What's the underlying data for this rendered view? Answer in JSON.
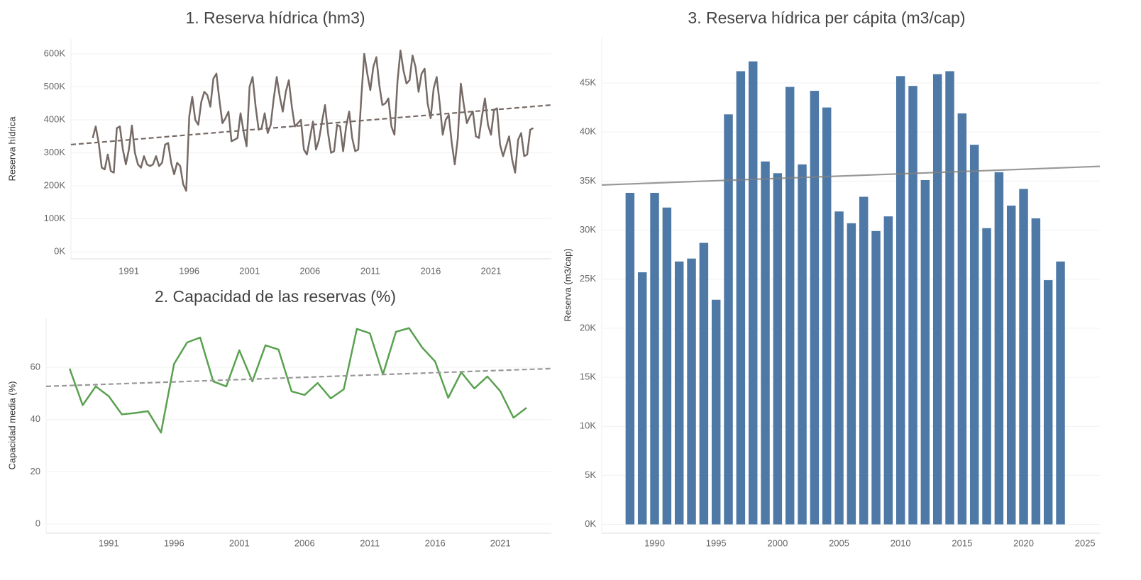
{
  "chart_data": [
    {
      "type": "line",
      "title": "1. Reserva hídrica (hm3)",
      "y_label": "Reserva hídrica",
      "color": "#766a66",
      "x": [
        1988,
        1988.25,
        1988.5,
        1988.75,
        1989,
        1989.25,
        1989.5,
        1989.75,
        1990,
        1990.25,
        1990.5,
        1990.75,
        1991,
        1991.25,
        1991.5,
        1991.75,
        1992,
        1992.25,
        1992.5,
        1992.75,
        1993,
        1993.25,
        1993.5,
        1993.75,
        1994,
        1994.25,
        1994.5,
        1994.75,
        1995,
        1995.25,
        1995.5,
        1995.75,
        1996,
        1996.25,
        1996.5,
        1996.75,
        1997,
        1997.25,
        1997.5,
        1997.75,
        1998,
        1998.25,
        1998.5,
        1998.75,
        1999,
        1999.25,
        1999.5,
        1999.75,
        2000,
        2000.25,
        2000.5,
        2000.75,
        2001,
        2001.25,
        2001.5,
        2001.75,
        2002,
        2002.25,
        2002.5,
        2002.75,
        2003,
        2003.25,
        2003.5,
        2003.75,
        2004,
        2004.25,
        2004.5,
        2004.75,
        2005,
        2005.25,
        2005.5,
        2005.75,
        2006,
        2006.25,
        2006.5,
        2006.75,
        2007,
        2007.25,
        2007.5,
        2007.75,
        2008,
        2008.25,
        2008.5,
        2008.75,
        2009,
        2009.25,
        2009.5,
        2009.75,
        2010,
        2010.25,
        2010.5,
        2010.75,
        2011,
        2011.25,
        2011.5,
        2011.75,
        2012,
        2012.25,
        2012.5,
        2012.75,
        2013,
        2013.25,
        2013.5,
        2013.75,
        2014,
        2014.25,
        2014.5,
        2014.75,
        2015,
        2015.25,
        2015.5,
        2015.75,
        2016,
        2016.25,
        2016.5,
        2016.75,
        2017,
        2017.25,
        2017.5,
        2017.75,
        2018,
        2018.25,
        2018.5,
        2018.75,
        2019,
        2019.25,
        2019.5,
        2019.75,
        2020,
        2020.25,
        2020.5,
        2020.75,
        2021,
        2021.25,
        2021.5,
        2021.75,
        2022,
        2022.25,
        2022.5,
        2022.75,
        2023,
        2023.25,
        2023.5,
        2023.75,
        2024,
        2024.25,
        2024.5
      ],
      "values": [
        345000,
        380000,
        330000,
        255000,
        250000,
        295000,
        245000,
        240000,
        375000,
        380000,
        310000,
        265000,
        310000,
        383000,
        300000,
        265000,
        255000,
        290000,
        265000,
        260000,
        265000,
        290000,
        260000,
        270000,
        325000,
        330000,
        270000,
        235000,
        270000,
        260000,
        205000,
        185000,
        410000,
        470000,
        400000,
        385000,
        455000,
        485000,
        475000,
        440000,
        525000,
        540000,
        460000,
        390000,
        405000,
        425000,
        335000,
        340000,
        345000,
        420000,
        365000,
        320000,
        500000,
        530000,
        440000,
        370000,
        375000,
        420000,
        360000,
        385000,
        465000,
        530000,
        470000,
        425000,
        485000,
        520000,
        440000,
        380000,
        390000,
        400000,
        310000,
        295000,
        345000,
        395000,
        310000,
        340000,
        395000,
        445000,
        360000,
        300000,
        305000,
        385000,
        380000,
        305000,
        380000,
        425000,
        345000,
        305000,
        310000,
        465000,
        600000,
        540000,
        490000,
        560000,
        590000,
        505000,
        445000,
        450000,
        465000,
        380000,
        355000,
        515000,
        610000,
        550000,
        510000,
        520000,
        595000,
        560000,
        485000,
        540000,
        555000,
        450000,
        405000,
        495000,
        530000,
        450000,
        355000,
        400000,
        415000,
        330000,
        265000,
        345000,
        510000,
        445000,
        390000,
        410000,
        425000,
        350000,
        345000,
        410000,
        465000,
        385000,
        355000,
        430000,
        435000,
        325000,
        290000,
        320000,
        350000,
        280000,
        240000,
        340000,
        360000,
        290000,
        295000,
        370000,
        375000
      ],
      "trend": {
        "x": [
          1986.2,
          2026
        ],
        "values": [
          325000,
          445000
        ],
        "color": "#766a66",
        "dash": true
      },
      "xlim": [
        1986.2,
        2026
      ],
      "xticks": [
        1991,
        1996,
        2001,
        2006,
        2011,
        2016,
        2021
      ],
      "ylim": [
        -21000,
        645000
      ],
      "yticks": [
        {
          "value": 0,
          "label": "0K"
        },
        {
          "value": 100000,
          "label": "100K"
        },
        {
          "value": 200000,
          "label": "200K"
        },
        {
          "value": 300000,
          "label": "300K"
        },
        {
          "value": 400000,
          "label": "400K"
        },
        {
          "value": 500000,
          "label": "500K"
        },
        {
          "value": 600000,
          "label": "600K"
        }
      ],
      "grid": true
    },
    {
      "type": "line",
      "title": "2. Capacidad de las reservas (%)",
      "y_label": "Capacidad media (%)",
      "color": "#59a14f",
      "x": [
        1988,
        1989,
        1990,
        1991,
        1992,
        1993,
        1994,
        1995,
        1996,
        1997,
        1998,
        1999,
        2000,
        2001,
        2002,
        2003,
        2004,
        2005,
        2006,
        2007,
        2008,
        2009,
        2010,
        2011,
        2012,
        2013,
        2014,
        2015,
        2016,
        2017,
        2018,
        2019,
        2020,
        2021,
        2022,
        2023
      ],
      "values": [
        59.5,
        45.5,
        52.7,
        48.9,
        42,
        42.5,
        43.2,
        35,
        61.3,
        69.5,
        71.4,
        54.6,
        52.7,
        66.5,
        54.6,
        68.4,
        66.8,
        50.8,
        49.4,
        54,
        48.1,
        51.6,
        74.7,
        73,
        57.3,
        73.6,
        75,
        67.6,
        62.2,
        48.3,
        58.1,
        51.9,
        56.5,
        50.8,
        40.7,
        44.5
      ],
      "trend": {
        "x": [
          1986.2,
          2024.9
        ],
        "values": [
          52.7,
          59.5
        ],
        "color": "#999999",
        "dash": true
      },
      "xlim": [
        1986.2,
        2024.9
      ],
      "xticks": [
        1991,
        1996,
        2001,
        2006,
        2011,
        2016,
        2021
      ],
      "ylim": [
        -3.5,
        79
      ],
      "yticks": [
        0,
        20,
        40,
        60
      ],
      "grid": true
    },
    {
      "type": "bar",
      "title": "3. Reserva hídrica per cápita (m3/cap)",
      "y_label": "Reserva (m3/cap)",
      "color": "#4e79a7",
      "x": [
        1988,
        1989,
        1990,
        1991,
        1992,
        1993,
        1994,
        1995,
        1996,
        1997,
        1998,
        1999,
        2000,
        2001,
        2002,
        2003,
        2004,
        2005,
        2006,
        2007,
        2008,
        2009,
        2010,
        2011,
        2012,
        2013,
        2014,
        2015,
        2016,
        2017,
        2018,
        2019,
        2020,
        2021,
        2022,
        2023
      ],
      "values": [
        33800,
        25700,
        33800,
        32300,
        26800,
        27100,
        28700,
        22900,
        41800,
        46200,
        47200,
        37000,
        35800,
        44600,
        36700,
        44200,
        42500,
        31900,
        30700,
        33400,
        29900,
        31400,
        45700,
        44700,
        35100,
        45900,
        46200,
        41900,
        38700,
        30200,
        35900,
        32500,
        34200,
        31200,
        24900,
        26800
      ],
      "trend": {
        "x": [
          1985.7,
          2026.2
        ],
        "values": [
          34600,
          36500
        ],
        "color": "#7f7f7f",
        "dash": false
      },
      "xlim": [
        1985.7,
        2026.2
      ],
      "xticks": [
        1990,
        1995,
        2000,
        2005,
        2010,
        2015,
        2020,
        2025
      ],
      "ylim": [
        -900,
        49700
      ],
      "yticks": [
        {
          "value": 0,
          "label": "0K"
        },
        {
          "value": 5000,
          "label": "5K"
        },
        {
          "value": 10000,
          "label": "10K"
        },
        {
          "value": 15000,
          "label": "15K"
        },
        {
          "value": 20000,
          "label": "20K"
        },
        {
          "value": 25000,
          "label": "25K"
        },
        {
          "value": 30000,
          "label": "30K"
        },
        {
          "value": 35000,
          "label": "35K"
        },
        {
          "value": 40000,
          "label": "40K"
        },
        {
          "value": 45000,
          "label": "45K"
        }
      ],
      "grid": true
    }
  ]
}
